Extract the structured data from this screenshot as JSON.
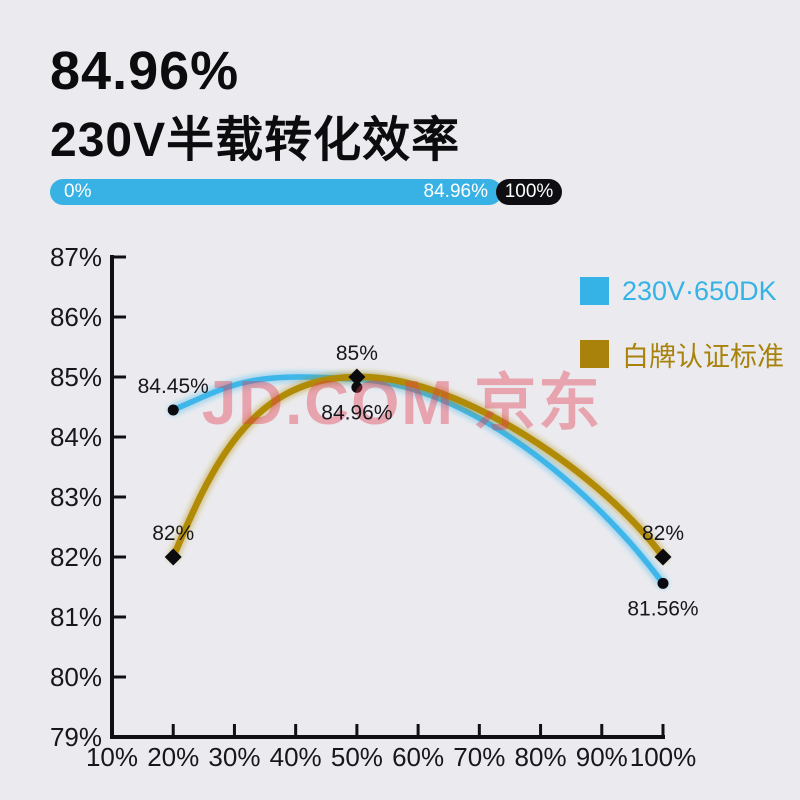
{
  "header": {
    "headline": "84.96%",
    "subtitle": "230V半载转化效率"
  },
  "progress": {
    "start_label": "0%",
    "value_label": "84.96%",
    "end_label": "100%",
    "bar_color": "#38b1e5",
    "end_color": "#0d0d12"
  },
  "legend": [
    {
      "label": "230V·650DK",
      "color": "#35b2e6"
    },
    {
      "label": "白牌认证标准",
      "color": "#a8820a"
    }
  ],
  "watermark": {
    "text": "JD.COM 京东",
    "color": "#e23c50"
  },
  "chart_data": {
    "type": "line",
    "title": "230V half-load conversion efficiency",
    "grid": false,
    "legend_position": "top-right",
    "axis_color": "#101014",
    "marker_color": "#0b0b0f",
    "x_axis": {
      "min": 10,
      "max": 100,
      "tick_step": 10,
      "tick_labels": [
        "10%",
        "20%",
        "30%",
        "40%",
        "50%",
        "60%",
        "70%",
        "80%",
        "90%",
        "100%"
      ]
    },
    "y_axis": {
      "min": 79,
      "max": 87,
      "tick_step": 1,
      "tick_labels": [
        "79%",
        "80%",
        "81%",
        "82%",
        "83%",
        "84%",
        "85%",
        "86%",
        "87%"
      ]
    },
    "series": [
      {
        "name": "230V·650DK",
        "color": "#3eb6ea",
        "marker": "circle",
        "points": [
          {
            "x": 20,
            "y": 84.45,
            "label": "84.45%",
            "label_pos": "above"
          },
          {
            "x": 50,
            "y": 84.96,
            "label": "84.96%",
            "label_pos": "below",
            "marker_dy": 8
          },
          {
            "x": 100,
            "y": 81.56,
            "label": "81.56%",
            "label_pos": "below"
          }
        ]
      },
      {
        "name": "白牌认证标准",
        "color": "#b18a06",
        "marker": "diamond",
        "points": [
          {
            "x": 20,
            "y": 82,
            "label": "82%",
            "label_pos": "above"
          },
          {
            "x": 50,
            "y": 85,
            "label": "85%",
            "label_pos": "above"
          },
          {
            "x": 100,
            "y": 82,
            "label": "82%",
            "label_pos": "above"
          }
        ]
      }
    ]
  }
}
